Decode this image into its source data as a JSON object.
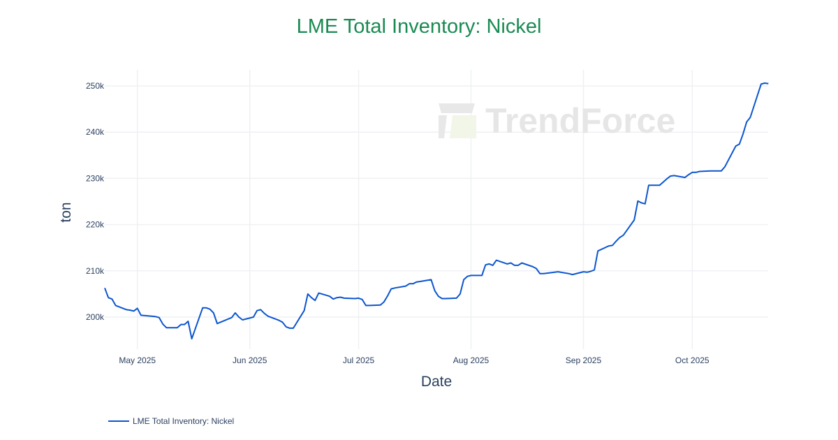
{
  "chart_data": {
    "type": "line",
    "title": "LME Total Inventory: Nickel",
    "xlabel": "Date",
    "ylabel": "ton",
    "x_ticks": [
      "May 2025",
      "Jun 2025",
      "Jul 2025",
      "Aug 2025",
      "Sep 2025",
      "Oct 2025"
    ],
    "y_ticks": [
      "200k",
      "210k",
      "220k",
      "230k",
      "240k",
      "250k"
    ],
    "ylim": [
      193000,
      253500
    ],
    "xlim": [
      "2025-04-22",
      "2025-10-22"
    ],
    "grid": true,
    "legend_position": "bottom-left",
    "series": [
      {
        "name": "LME Total Inventory: Nickel",
        "color": "#0b55cf",
        "points": [
          [
            "2025-04-22",
            206300
          ],
          [
            "2025-04-23",
            204200
          ],
          [
            "2025-04-24",
            203900
          ],
          [
            "2025-04-25",
            202500
          ],
          [
            "2025-04-28",
            201600
          ],
          [
            "2025-04-29",
            201500
          ],
          [
            "2025-04-30",
            201300
          ],
          [
            "2025-05-01",
            201900
          ],
          [
            "2025-05-02",
            200400
          ],
          [
            "2025-05-06",
            200100
          ],
          [
            "2025-05-07",
            199900
          ],
          [
            "2025-05-08",
            198500
          ],
          [
            "2025-05-09",
            197700
          ],
          [
            "2025-05-12",
            197700
          ],
          [
            "2025-05-13",
            198400
          ],
          [
            "2025-05-14",
            198400
          ],
          [
            "2025-05-15",
            199100
          ],
          [
            "2025-05-16",
            195300
          ],
          [
            "2025-05-19",
            202000
          ],
          [
            "2025-05-20",
            202000
          ],
          [
            "2025-05-21",
            201700
          ],
          [
            "2025-05-22",
            200900
          ],
          [
            "2025-05-23",
            198600
          ],
          [
            "2025-05-27",
            199900
          ],
          [
            "2025-05-28",
            200900
          ],
          [
            "2025-05-29",
            200000
          ],
          [
            "2025-05-30",
            199400
          ],
          [
            "2025-06-02",
            200000
          ],
          [
            "2025-06-03",
            201400
          ],
          [
            "2025-06-04",
            201600
          ],
          [
            "2025-06-05",
            200800
          ],
          [
            "2025-06-06",
            200200
          ],
          [
            "2025-06-09",
            199300
          ],
          [
            "2025-06-10",
            198900
          ],
          [
            "2025-06-11",
            197900
          ],
          [
            "2025-06-12",
            197600
          ],
          [
            "2025-06-13",
            197600
          ],
          [
            "2025-06-16",
            201400
          ],
          [
            "2025-06-17",
            205000
          ],
          [
            "2025-06-18",
            204200
          ],
          [
            "2025-06-19",
            203600
          ],
          [
            "2025-06-20",
            205200
          ],
          [
            "2025-06-23",
            204500
          ],
          [
            "2025-06-24",
            203900
          ],
          [
            "2025-06-25",
            204200
          ],
          [
            "2025-06-26",
            204300
          ],
          [
            "2025-06-27",
            204100
          ],
          [
            "2025-06-30",
            204000
          ],
          [
            "2025-07-01",
            204100
          ],
          [
            "2025-07-02",
            203800
          ],
          [
            "2025-07-03",
            202500
          ],
          [
            "2025-07-04",
            202500
          ],
          [
            "2025-07-07",
            202600
          ],
          [
            "2025-07-08",
            203300
          ],
          [
            "2025-07-09",
            204600
          ],
          [
            "2025-07-10",
            206100
          ],
          [
            "2025-07-11",
            206300
          ],
          [
            "2025-07-14",
            206700
          ],
          [
            "2025-07-15",
            207200
          ],
          [
            "2025-07-16",
            207200
          ],
          [
            "2025-07-17",
            207600
          ],
          [
            "2025-07-18",
            207700
          ],
          [
            "2025-07-21",
            208100
          ],
          [
            "2025-07-22",
            205700
          ],
          [
            "2025-07-23",
            204500
          ],
          [
            "2025-07-24",
            204000
          ],
          [
            "2025-07-25",
            204000
          ],
          [
            "2025-07-28",
            204100
          ],
          [
            "2025-07-29",
            205000
          ],
          [
            "2025-07-30",
            208100
          ],
          [
            "2025-07-31",
            208800
          ],
          [
            "2025-08-01",
            209000
          ],
          [
            "2025-08-04",
            209000
          ],
          [
            "2025-08-05",
            211300
          ],
          [
            "2025-08-06",
            211500
          ],
          [
            "2025-08-07",
            211200
          ],
          [
            "2025-08-08",
            212300
          ],
          [
            "2025-08-11",
            211500
          ],
          [
            "2025-08-12",
            211700
          ],
          [
            "2025-08-13",
            211200
          ],
          [
            "2025-08-14",
            211200
          ],
          [
            "2025-08-15",
            211700
          ],
          [
            "2025-08-18",
            210900
          ],
          [
            "2025-08-19",
            210500
          ],
          [
            "2025-08-20",
            209400
          ],
          [
            "2025-08-21",
            209400
          ],
          [
            "2025-08-22",
            209500
          ],
          [
            "2025-08-25",
            209800
          ],
          [
            "2025-08-28",
            209400
          ],
          [
            "2025-08-29",
            209200
          ],
          [
            "2025-09-01",
            209800
          ],
          [
            "2025-09-02",
            209700
          ],
          [
            "2025-09-03",
            209900
          ],
          [
            "2025-09-04",
            210200
          ],
          [
            "2025-09-05",
            214300
          ],
          [
            "2025-09-08",
            215400
          ],
          [
            "2025-09-09",
            215500
          ],
          [
            "2025-09-10",
            216400
          ],
          [
            "2025-09-11",
            217200
          ],
          [
            "2025-09-12",
            217700
          ],
          [
            "2025-09-15",
            221000
          ],
          [
            "2025-09-16",
            225100
          ],
          [
            "2025-09-17",
            224700
          ],
          [
            "2025-09-18",
            224500
          ],
          [
            "2025-09-19",
            228500
          ],
          [
            "2025-09-22",
            228500
          ],
          [
            "2025-09-23",
            229200
          ],
          [
            "2025-09-24",
            229900
          ],
          [
            "2025-09-25",
            230500
          ],
          [
            "2025-09-26",
            230600
          ],
          [
            "2025-09-29",
            230200
          ],
          [
            "2025-09-30",
            230800
          ],
          [
            "2025-10-01",
            231300
          ],
          [
            "2025-10-02",
            231300
          ],
          [
            "2025-10-03",
            231500
          ],
          [
            "2025-10-06",
            231600
          ],
          [
            "2025-10-07",
            231600
          ],
          [
            "2025-10-08",
            231600
          ],
          [
            "2025-10-09",
            231600
          ],
          [
            "2025-10-10",
            232500
          ],
          [
            "2025-10-13",
            237000
          ],
          [
            "2025-10-14",
            237400
          ],
          [
            "2025-10-15",
            239600
          ],
          [
            "2025-10-16",
            242200
          ],
          [
            "2025-10-17",
            243200
          ],
          [
            "2025-10-20",
            250400
          ],
          [
            "2025-10-21",
            250600
          ],
          [
            "2025-10-22",
            250500
          ]
        ]
      }
    ]
  },
  "legend": {
    "label": "LME Total Inventory: Nickel"
  },
  "watermark": {
    "text": "TrendForce"
  }
}
